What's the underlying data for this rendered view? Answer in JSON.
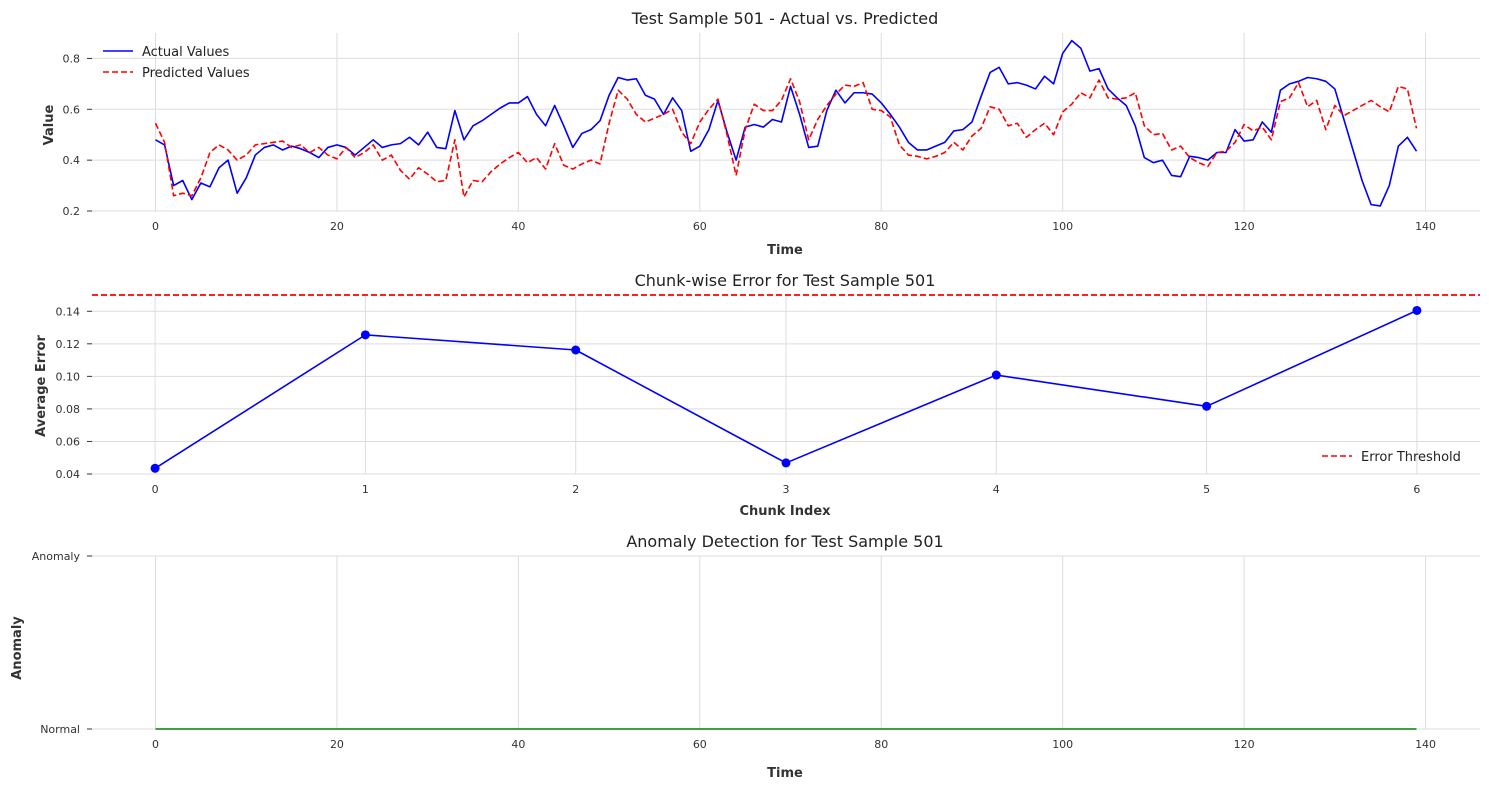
{
  "chart_data": [
    {
      "type": "line",
      "title": "Test Sample 501 - Actual vs. Predicted",
      "xlabel": "Time",
      "ylabel": "Value",
      "xlim": [
        -7,
        146
      ],
      "ylim": [
        0.2,
        0.9
      ],
      "xticks": [
        0,
        20,
        40,
        60,
        80,
        100,
        120,
        140
      ],
      "yticks": [
        0.2,
        0.4,
        0.6,
        0.8
      ],
      "grid": true,
      "legend_position": "top-left",
      "x": [
        0,
        1,
        2,
        3,
        4,
        5,
        6,
        7,
        8,
        9,
        10,
        11,
        12,
        13,
        14,
        15,
        16,
        17,
        18,
        19,
        20,
        21,
        22,
        23,
        24,
        25,
        26,
        27,
        28,
        29,
        30,
        31,
        32,
        33,
        34,
        35,
        36,
        37,
        38,
        39,
        40,
        41,
        42,
        43,
        44,
        45,
        46,
        47,
        48,
        49,
        50,
        51,
        52,
        53,
        54,
        55,
        56,
        57,
        58,
        59,
        60,
        61,
        62,
        63,
        64,
        65,
        66,
        67,
        68,
        69,
        70,
        71,
        72,
        73,
        74,
        75,
        76,
        77,
        78,
        79,
        80,
        81,
        82,
        83,
        84,
        85,
        86,
        87,
        88,
        89,
        90,
        91,
        92,
        93,
        94,
        95,
        96,
        97,
        98,
        99,
        100,
        101,
        102,
        103,
        104,
        105,
        106,
        107,
        108,
        109,
        110,
        111,
        112,
        113,
        114,
        115,
        116,
        117,
        118,
        119,
        120,
        121,
        122,
        123,
        124,
        125,
        126,
        127,
        128,
        129,
        130,
        131,
        132,
        133,
        134,
        135,
        136,
        137,
        138,
        139
      ],
      "series": [
        {
          "name": "Actual Values",
          "color": "#0000ff",
          "style": "solid",
          "values": [
            0.48,
            0.46,
            0.3,
            0.32,
            0.245,
            0.31,
            0.295,
            0.37,
            0.4,
            0.27,
            0.33,
            0.42,
            0.45,
            0.46,
            0.44,
            0.455,
            0.445,
            0.43,
            0.41,
            0.45,
            0.46,
            0.45,
            0.42,
            0.45,
            0.48,
            0.45,
            0.46,
            0.465,
            0.49,
            0.46,
            0.51,
            0.45,
            0.445,
            0.595,
            0.48,
            0.535,
            0.555,
            0.58,
            0.605,
            0.625,
            0.625,
            0.65,
            0.58,
            0.535,
            0.615,
            0.535,
            0.45,
            0.505,
            0.52,
            0.555,
            0.655,
            0.725,
            0.715,
            0.72,
            0.655,
            0.64,
            0.58,
            0.645,
            0.595,
            0.435,
            0.455,
            0.52,
            0.635,
            0.51,
            0.4,
            0.53,
            0.54,
            0.53,
            0.56,
            0.55,
            0.69,
            0.58,
            0.45,
            0.455,
            0.595,
            0.675,
            0.625,
            0.665,
            0.665,
            0.66,
            0.625,
            0.58,
            0.53,
            0.47,
            0.44,
            0.44,
            0.455,
            0.47,
            0.515,
            0.52,
            0.55,
            0.65,
            0.745,
            0.765,
            0.7,
            0.705,
            0.695,
            0.68,
            0.73,
            0.7,
            0.82,
            0.87,
            0.84,
            0.75,
            0.76,
            0.68,
            0.645,
            0.615,
            0.535,
            0.41,
            0.39,
            0.4,
            0.34,
            0.335,
            0.415,
            0.41,
            0.4,
            0.43,
            0.43,
            0.52,
            0.475,
            0.48,
            0.55,
            0.51,
            0.675,
            0.7,
            0.71,
            0.725,
            0.72,
            0.71,
            0.68,
            0.56,
            0.44,
            0.32,
            0.225,
            0.22,
            0.3,
            0.455,
            0.49,
            0.435
          ]
        },
        {
          "name": "Predicted Values",
          "color": "#ff0000",
          "style": "dashed",
          "values": [
            0.545,
            0.47,
            0.26,
            0.27,
            0.26,
            0.33,
            0.43,
            0.46,
            0.44,
            0.4,
            0.42,
            0.46,
            0.465,
            0.47,
            0.475,
            0.45,
            0.46,
            0.43,
            0.45,
            0.42,
            0.405,
            0.45,
            0.41,
            0.43,
            0.46,
            0.4,
            0.42,
            0.36,
            0.325,
            0.37,
            0.345,
            0.315,
            0.32,
            0.48,
            0.255,
            0.32,
            0.315,
            0.355,
            0.385,
            0.41,
            0.43,
            0.39,
            0.41,
            0.365,
            0.465,
            0.38,
            0.365,
            0.385,
            0.4,
            0.385,
            0.545,
            0.675,
            0.64,
            0.58,
            0.55,
            0.565,
            0.58,
            0.6,
            0.51,
            0.465,
            0.55,
            0.6,
            0.64,
            0.5,
            0.34,
            0.52,
            0.62,
            0.595,
            0.595,
            0.635,
            0.72,
            0.63,
            0.48,
            0.56,
            0.615,
            0.66,
            0.695,
            0.69,
            0.705,
            0.6,
            0.595,
            0.57,
            0.46,
            0.42,
            0.415,
            0.405,
            0.415,
            0.43,
            0.47,
            0.44,
            0.495,
            0.525,
            0.61,
            0.6,
            0.535,
            0.545,
            0.49,
            0.52,
            0.545,
            0.5,
            0.59,
            0.62,
            0.665,
            0.645,
            0.715,
            0.645,
            0.64,
            0.645,
            0.665,
            0.535,
            0.5,
            0.505,
            0.44,
            0.455,
            0.41,
            0.39,
            0.375,
            0.43,
            0.435,
            0.47,
            0.54,
            0.515,
            0.53,
            0.48,
            0.63,
            0.645,
            0.705,
            0.61,
            0.635,
            0.52,
            0.615,
            0.575,
            0.595,
            0.615,
            0.635,
            0.61,
            0.59,
            0.69,
            0.68,
            0.525
          ]
        }
      ]
    },
    {
      "type": "line",
      "title": "Chunk-wise Error for Test Sample 501",
      "xlabel": "Chunk Index",
      "ylabel": "Average Error",
      "xlim": [
        -0.3,
        6.3
      ],
      "ylim": [
        0.04,
        0.15
      ],
      "xticks": [
        0,
        1,
        2,
        3,
        4,
        5,
        6
      ],
      "yticks": [
        0.04,
        0.06,
        0.08,
        0.1,
        0.12,
        0.14
      ],
      "ytick_labels": [
        "0.04",
        "0.06",
        "0.08",
        "0.10",
        "0.12",
        "0.14"
      ],
      "grid": true,
      "legend_position": "bottom-right",
      "x": [
        0,
        1,
        2,
        3,
        4,
        5,
        6
      ],
      "series": [
        {
          "color": "#0000ff",
          "style": "solid",
          "markers": true,
          "values": [
            0.0435,
            0.1255,
            0.1162,
            0.0468,
            0.1008,
            0.0816,
            0.1405
          ]
        }
      ],
      "hlines": [
        {
          "name": "Error Threshold",
          "y": 0.15,
          "color": "#ff0000",
          "style": "dashed"
        }
      ]
    },
    {
      "type": "line",
      "title": "Anomaly Detection for Test Sample 501",
      "xlabel": "Time",
      "ylabel": "Anomaly",
      "xlim": [
        -7,
        146
      ],
      "ylim": [
        -0.05,
        1.05
      ],
      "xticks": [
        0,
        20,
        40,
        60,
        80,
        100,
        120,
        140
      ],
      "ytick_labels": [
        "Normal",
        "Anomaly"
      ],
      "grid": true,
      "series": [
        {
          "color": "#008000",
          "style": "solid",
          "x_range": [
            0,
            139
          ],
          "constant_value": 0
        }
      ]
    }
  ]
}
